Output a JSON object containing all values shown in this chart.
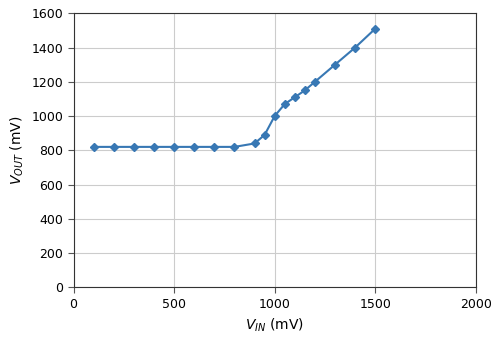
{
  "x": [
    100,
    200,
    300,
    400,
    500,
    600,
    700,
    800,
    900,
    950,
    1000,
    1050,
    1100,
    1150,
    1200,
    1300,
    1400,
    1500
  ],
  "y": [
    820,
    820,
    820,
    820,
    820,
    820,
    820,
    820,
    840,
    890,
    1000,
    1070,
    1110,
    1150,
    1200,
    1300,
    1400,
    1510
  ],
  "line_color": "#3878b4",
  "marker": "D",
  "marker_size": 4,
  "xlim": [
    0,
    2000
  ],
  "ylim": [
    0,
    1600
  ],
  "xticks": [
    0,
    500,
    1000,
    1500,
    2000
  ],
  "yticks": [
    0,
    200,
    400,
    600,
    800,
    1000,
    1200,
    1400,
    1600
  ],
  "grid_color": "#cccccc",
  "bg_color": "#ffffff",
  "linewidth": 1.5,
  "tick_labelsize": 9
}
